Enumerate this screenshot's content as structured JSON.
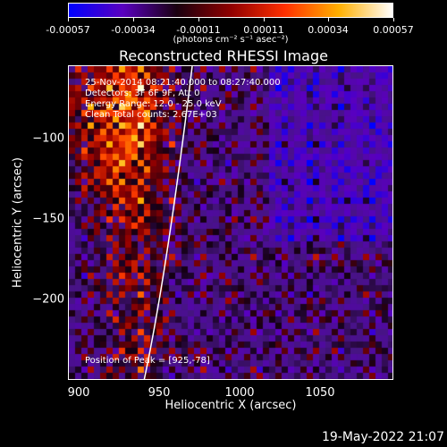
{
  "colorbar": {
    "ticks": [
      "-0.00057",
      "-0.00034",
      "-0.00011",
      "0.00011",
      "0.00034",
      "0.00057"
    ],
    "unit_label": "(photons cm⁻² s⁻¹ asec⁻²)",
    "colors": [
      "#0000ff",
      "#5a00c0",
      "#1a0010",
      "#900000",
      "#ff3000",
      "#ffb000",
      "#ffffff"
    ]
  },
  "plot": {
    "title": "Reconstructed RHESSI Image",
    "xlabel": "Heliocentric X (arcsec)",
    "ylabel": "Heliocentric Y (arcsec)",
    "x_ticks": [
      "900",
      "950",
      "1000",
      "1050"
    ],
    "y_ticks": [
      "−100",
      "−150",
      "−200"
    ],
    "xlim": [
      893,
      1087
    ],
    "ylim": [
      -247,
      -63
    ]
  },
  "info": {
    "line1": "25-Nov-2014 08:21:40.000 to 08:27:40.000",
    "line2": "Detectors: 3F 6F 9F, Att 0",
    "line3": "Energy Range: 12.0 - 25.0 keV",
    "line4": "Clean      Total counts: 2.67E+03",
    "peak": "Position of Peak = [925,-78]"
  },
  "timestamp": "19-May-2022 21:07"
}
